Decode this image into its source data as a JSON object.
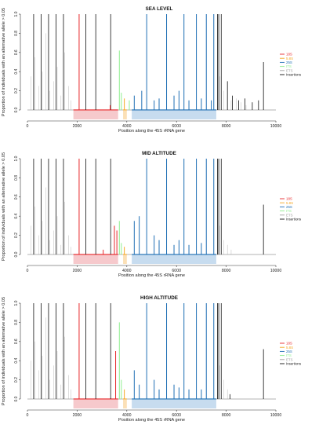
{
  "colors": {
    "axis": "#333333",
    "backbone": "#9a9a9a",
    "18S": "#e8282b",
    "5.8S": "#f5a623",
    "25S": "#1f6fb5",
    "ITS": "#90ee90",
    "ETS": "#a0a0a0",
    "Insertions": "#111111",
    "region_18S": "#f6c9cc",
    "region_5.8S": "#fbe0b6",
    "region_25S": "#c7dcef"
  },
  "chart_data": [
    {
      "type": "bar",
      "title": "SEA LEVEL",
      "xlabel": "Position along the 45S rRNA gene",
      "ylabel": "Proportion of individuals with an alternative allele > 0.05",
      "xlim": [
        0,
        10000
      ],
      "ylim": [
        0,
        1.0
      ],
      "xticks": [
        0,
        2000,
        4000,
        6000,
        8000,
        10000
      ],
      "yticks": [
        "0.0",
        "0.2",
        "0.4",
        "0.6",
        "0.8",
        "1.0"
      ],
      "legend_position": "right",
      "legend": [
        "18S",
        "5.8S",
        "25S",
        "ITS",
        "ETS",
        "Insertions"
      ],
      "regions": [
        {
          "name": "18S",
          "start": 1850,
          "end": 3650
        },
        {
          "name": "5.8S",
          "start": 3850,
          "end": 4000
        },
        {
          "name": "25S",
          "start": 4200,
          "end": 7600
        }
      ],
      "series": [
        {
          "name": "ETS",
          "x": [
            150,
            300,
            450,
            600,
            750,
            900,
            1050,
            1200,
            1350,
            1500,
            1650,
            1750,
            7750,
            7900,
            8050,
            8200,
            8400,
            8600,
            8800
          ],
          "values": [
            0.35,
            0.55,
            0.25,
            0.4,
            0.8,
            0.2,
            0.3,
            0.45,
            0.15,
            0.6,
            0.25,
            0.1,
            0.35,
            0.2,
            0.15,
            0.1,
            0.12,
            0.08,
            0.05
          ]
        },
        {
          "name": "Insertions",
          "x": [
            250,
            550,
            850,
            1150,
            1450,
            2350,
            2750,
            3350,
            7650,
            7700,
            7800,
            8050,
            8250,
            8500,
            8750,
            9050,
            9300,
            9500
          ],
          "values": [
            1.0,
            1.0,
            1.0,
            1.0,
            1.0,
            1.0,
            1.0,
            1.0,
            1.0,
            1.0,
            1.0,
            0.3,
            0.15,
            0.1,
            0.12,
            0.08,
            0.1,
            0.5
          ]
        },
        {
          "name": "18S",
          "x": [
            2080,
            3330
          ],
          "values": [
            1.0,
            0.05
          ]
        },
        {
          "name": "5.8S",
          "x": [
            3900
          ],
          "values": [
            0.12
          ]
        },
        {
          "name": "ITS",
          "x": [
            3700,
            3780,
            4100
          ],
          "values": [
            0.62,
            0.18,
            0.1
          ]
        },
        {
          "name": "25S",
          "x": [
            4300,
            4600,
            4800,
            5100,
            5300,
            5600,
            5900,
            6100,
            6300,
            6500,
            6800,
            7000,
            7200,
            7400,
            7500
          ],
          "values": [
            0.15,
            0.2,
            1.0,
            0.1,
            0.12,
            1.0,
            0.15,
            0.2,
            1.0,
            0.1,
            1.0,
            0.12,
            1.0,
            0.1,
            1.0
          ]
        }
      ]
    },
    {
      "type": "bar",
      "title": "MID ALTITUDE",
      "xlabel": "Position along the 45S rRNA gene",
      "ylabel": "Proportion of individuals with an alternative allele > 0.05",
      "xlim": [
        0,
        10000
      ],
      "ylim": [
        0,
        1.0
      ],
      "xticks": [
        0,
        2000,
        4000,
        6000,
        8000,
        10000
      ],
      "yticks": [
        "0.0",
        "0.2",
        "0.4",
        "0.6",
        "0.8",
        "1.0"
      ],
      "legend_position": "right",
      "legend": [
        "18S",
        "5.8S",
        "25S",
        "ITS",
        "ETS",
        "Insertions"
      ],
      "regions": [
        {
          "name": "18S",
          "start": 1850,
          "end": 3650
        },
        {
          "name": "5.8S",
          "start": 3850,
          "end": 4000
        },
        {
          "name": "25S",
          "start": 4200,
          "end": 7600
        }
      ],
      "series": [
        {
          "name": "ETS",
          "x": [
            150,
            300,
            450,
            600,
            750,
            900,
            1050,
            1200,
            1350,
            1500,
            1650,
            1750,
            7750,
            7900,
            8050,
            8200
          ],
          "values": [
            0.3,
            0.5,
            0.2,
            0.35,
            0.7,
            0.15,
            0.25,
            0.4,
            0.1,
            0.55,
            0.2,
            0.08,
            0.3,
            0.15,
            0.1,
            0.05
          ]
        },
        {
          "name": "Insertions",
          "x": [
            250,
            550,
            850,
            1150,
            1450,
            2350,
            2750,
            3350,
            7650,
            7700,
            7800,
            9500
          ],
          "values": [
            1.0,
            1.0,
            1.0,
            1.0,
            1.0,
            1.0,
            1.0,
            1.0,
            1.0,
            1.0,
            1.0,
            0.52
          ]
        },
        {
          "name": "18S",
          "x": [
            2080,
            3050,
            3500,
            3600
          ],
          "values": [
            1.0,
            0.05,
            0.3,
            0.25
          ]
        },
        {
          "name": "5.8S",
          "x": [
            3900
          ],
          "values": [
            0.08
          ]
        },
        {
          "name": "ITS",
          "x": [
            3700,
            3780
          ],
          "values": [
            0.35,
            0.12
          ]
        },
        {
          "name": "25S",
          "x": [
            4300,
            4500,
            4800,
            5100,
            5300,
            5600,
            5900,
            6100,
            6300,
            6500,
            6800,
            7000,
            7200,
            7500
          ],
          "values": [
            0.35,
            0.4,
            1.0,
            0.2,
            0.15,
            1.0,
            0.1,
            0.15,
            1.0,
            0.1,
            1.0,
            0.12,
            1.0,
            1.0
          ]
        }
      ]
    },
    {
      "type": "bar",
      "title": "HIGH ALTITUDE",
      "xlabel": "Position along the 45S rRNA gene",
      "ylabel": "Proportion of individuals with an alternative allele > 0.05",
      "xlim": [
        0,
        10000
      ],
      "ylim": [
        0,
        1.0
      ],
      "xticks": [
        0,
        2000,
        4000,
        6000,
        8000,
        10000
      ],
      "yticks": [
        "0.0",
        "0.2",
        "0.4",
        "0.6",
        "0.8",
        "1.0"
      ],
      "legend_position": "right",
      "legend": [
        "18S",
        "5.8S",
        "25S",
        "ITS",
        "ETS",
        "Insertions"
      ],
      "regions": [
        {
          "name": "18S",
          "start": 1850,
          "end": 3650
        },
        {
          "name": "5.8S",
          "start": 3850,
          "end": 4000
        },
        {
          "name": "25S",
          "start": 4200,
          "end": 7600
        }
      ],
      "series": [
        {
          "name": "ETS",
          "x": [
            150,
            300,
            450,
            600,
            750,
            900,
            1050,
            1200,
            1350,
            1500,
            1650,
            1750,
            7750,
            7900,
            8050
          ],
          "values": [
            0.4,
            0.6,
            0.3,
            0.45,
            0.85,
            0.2,
            0.35,
            0.5,
            0.15,
            0.65,
            0.25,
            0.1,
            0.35,
            0.2,
            0.1
          ]
        },
        {
          "name": "Insertions",
          "x": [
            250,
            550,
            850,
            1150,
            1450,
            2350,
            2750,
            3350,
            7650,
            7700,
            7800,
            8150,
            9500
          ],
          "values": [
            1.0,
            1.0,
            1.0,
            1.0,
            1.0,
            1.0,
            1.0,
            1.0,
            1.0,
            1.0,
            1.0,
            0.05,
            0.52
          ]
        },
        {
          "name": "18S",
          "x": [
            2080,
            3550
          ],
          "values": [
            1.0,
            0.5
          ]
        },
        {
          "name": "5.8S",
          "x": [
            3900
          ],
          "values": [
            0.1
          ]
        },
        {
          "name": "ITS",
          "x": [
            3700,
            3780
          ],
          "values": [
            0.8,
            0.2
          ]
        },
        {
          "name": "25S",
          "x": [
            4300,
            4500,
            4800,
            5100,
            5300,
            5600,
            5900,
            6100,
            6300,
            6500,
            6800,
            7000,
            7200,
            7500
          ],
          "values": [
            0.3,
            0.15,
            1.0,
            0.2,
            0.1,
            1.0,
            0.15,
            0.12,
            1.0,
            0.1,
            1.0,
            0.1,
            1.0,
            1.0
          ]
        }
      ]
    }
  ]
}
